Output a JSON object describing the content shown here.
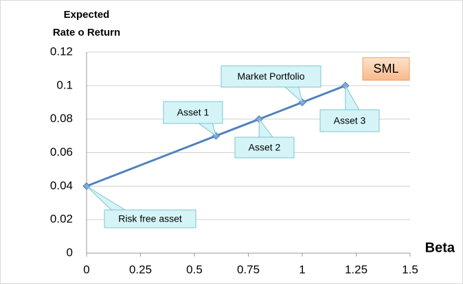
{
  "chart_data": {
    "type": "line",
    "ylabel": [
      "Expected",
      "Rate o Return"
    ],
    "xlabel": "Beta",
    "x": [
      0,
      0.6,
      0.8,
      1,
      1.2
    ],
    "series": [
      {
        "name": "SML",
        "color": "#4f81bd",
        "values": [
          0.04,
          0.07,
          0.08,
          0.09,
          0.1
        ]
      }
    ],
    "point_labels": [
      "Risk free asset",
      "Asset 1",
      "Asset 2",
      "Market Portfolio",
      "Asset 3"
    ],
    "xlim": [
      0,
      1.5
    ],
    "xticks": [
      0,
      0.25,
      0.5,
      0.75,
      1,
      1.25,
      1.5
    ],
    "ylim": [
      0,
      0.12
    ],
    "yticks": [
      0,
      0.02,
      0.04,
      0.06,
      0.08,
      0.1,
      0.12
    ],
    "grid": true
  }
}
